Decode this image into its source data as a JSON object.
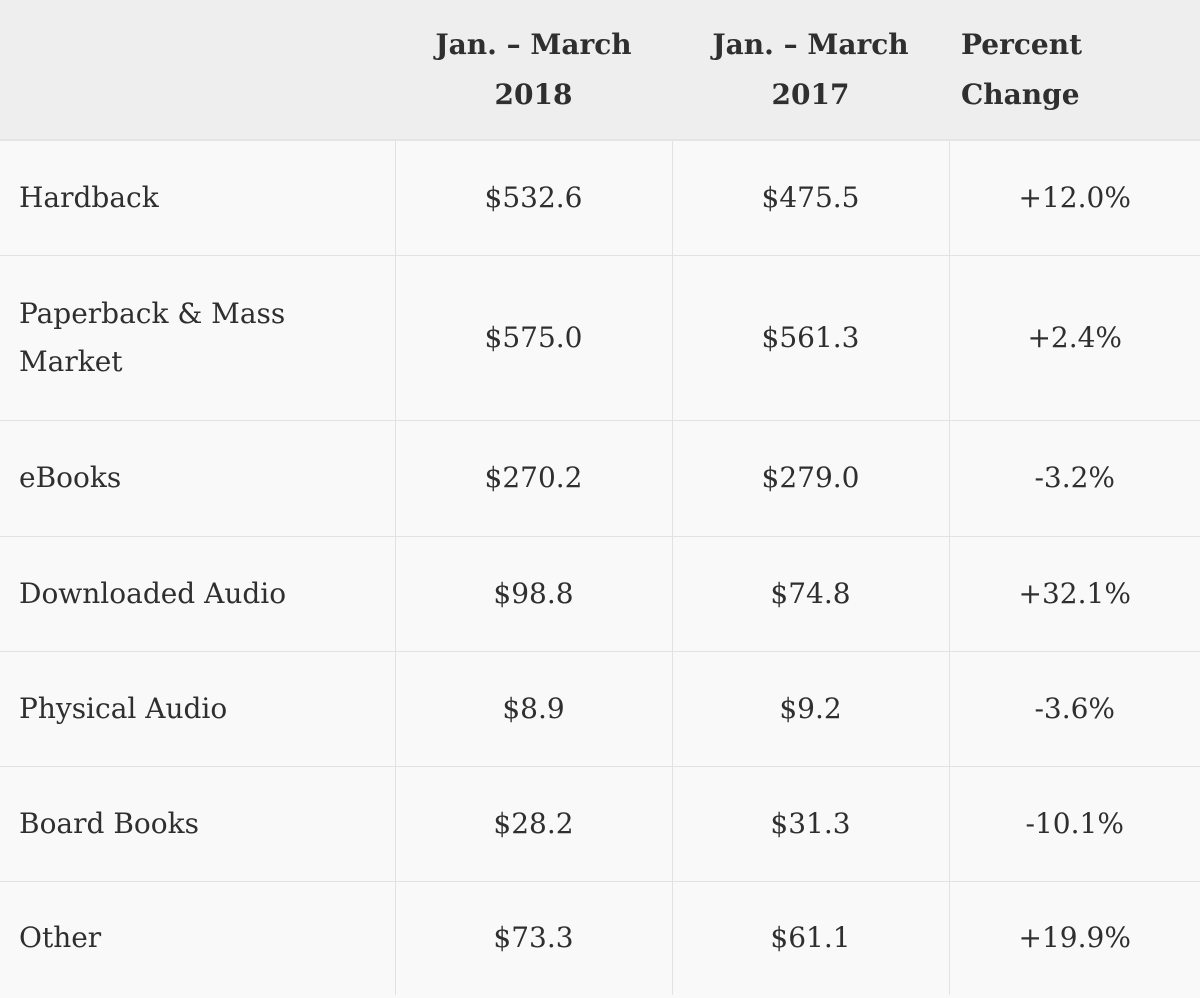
{
  "table": {
    "headers": [
      {
        "lines": [
          "",
          ""
        ]
      },
      {
        "lines": [
          "Jan. – March",
          "2018"
        ]
      },
      {
        "lines": [
          "Jan. – March",
          "2017"
        ]
      },
      {
        "lines": [
          "Percent",
          "Change"
        ]
      }
    ],
    "rows": [
      {
        "category": "Hardback",
        "q1_2018": "$532.6",
        "q1_2017": "$475.5",
        "percent_change": "+12.0%"
      },
      {
        "category": "Paperback & Mass Market",
        "q1_2018": "$575.0",
        "q1_2017": "$561.3",
        "percent_change": "+2.4%"
      },
      {
        "category": "eBooks",
        "q1_2018": "$270.2",
        "q1_2017": "$279.0",
        "percent_change": "-3.2%"
      },
      {
        "category": "Downloaded Audio",
        "q1_2018": "$98.8",
        "q1_2017": "$74.8",
        "percent_change": "+32.1%"
      },
      {
        "category": "Physical Audio",
        "q1_2018": "$8.9",
        "q1_2017": "$9.2",
        "percent_change": "-3.6%"
      },
      {
        "category": "Board Books",
        "q1_2018": "$28.2",
        "q1_2017": "$31.3",
        "percent_change": "-10.1%"
      },
      {
        "category": "Other",
        "q1_2018": "$73.3",
        "q1_2017": "$61.1",
        "percent_change": "+19.9%"
      }
    ]
  }
}
